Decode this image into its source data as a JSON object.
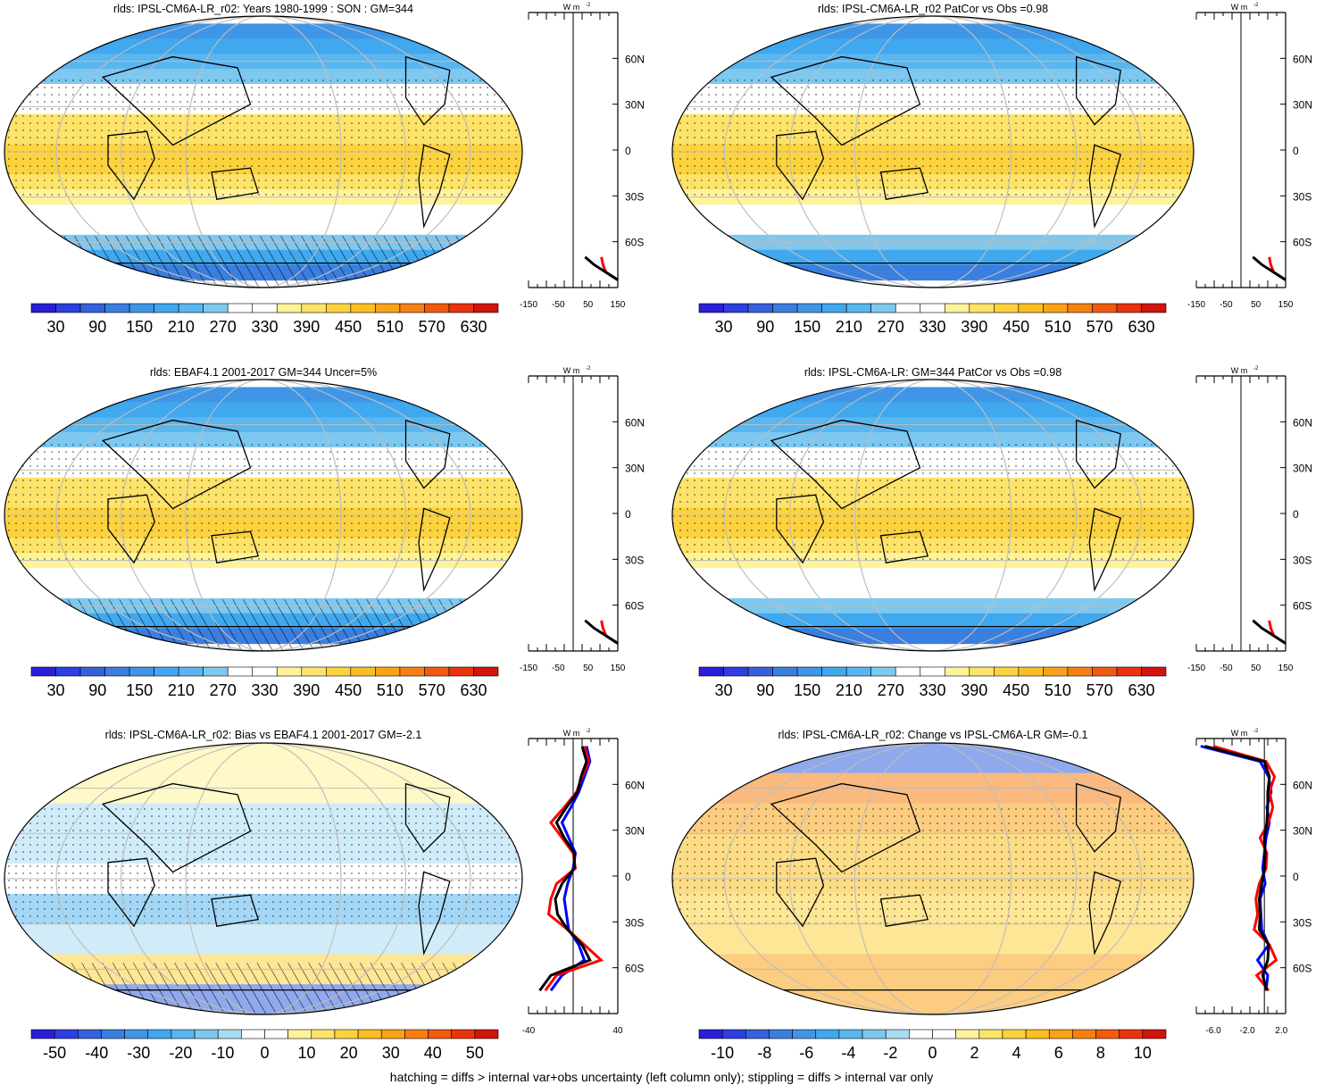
{
  "colors": {
    "abs_scale": [
      "#2a1ed8",
      "#2e3fe0",
      "#3561dc",
      "#3a7ee0",
      "#3f96e6",
      "#40a8ee",
      "#5ab6ef",
      "#7ec8f0",
      "#ffffff",
      "#ffffff",
      "#fff39a",
      "#fde36a",
      "#fcd23f",
      "#fbbf22",
      "#f9a21a",
      "#f68014",
      "#f15a10",
      "#ea330e",
      "#d1140c"
    ],
    "diff_scale": [
      "#2a1ed8",
      "#2e3fe0",
      "#3561dc",
      "#3a7ee0",
      "#3f96e6",
      "#40a8ee",
      "#5ab6ef",
      "#7ec8f0",
      "#a9dcf3",
      "#ffffff",
      "#ffffff",
      "#fff39a",
      "#fde36a",
      "#fcd23f",
      "#fbbf22",
      "#f9a21a",
      "#f68014",
      "#f15a10",
      "#ea330e",
      "#d1140c"
    ],
    "land": "#000000",
    "grid": "#bdbdbd"
  },
  "footnote": "hatching = diffs > internal var+obs uncertainty (left column only); stippling = diffs > internal var only",
  "panels": [
    {
      "id": "p1",
      "title": "rlds: IPSL-CM6A-LR_r02: Years 1980-1999 : SON : GM=344",
      "scale": "abs",
      "colorbar_labels": [
        "30",
        "90",
        "150",
        "210",
        "270",
        "330",
        "390",
        "450",
        "510",
        "570",
        "630"
      ]
    },
    {
      "id": "p2",
      "title": "rlds: IPSL-CM6A-LR_r02 PatCor vs Obs =0.98",
      "scale": "abs",
      "colorbar_labels": [
        "30",
        "90",
        "150",
        "210",
        "270",
        "330",
        "390",
        "450",
        "510",
        "570",
        "630"
      ]
    },
    {
      "id": "p3",
      "title": "rlds: EBAF4.1 2001-2017 GM=344 Uncer=5%",
      "scale": "abs",
      "colorbar_labels": [
        "30",
        "90",
        "150",
        "210",
        "270",
        "330",
        "390",
        "450",
        "510",
        "570",
        "630"
      ]
    },
    {
      "id": "p4",
      "title": "rlds: IPSL-CM6A-LR: GM=344 PatCor vs Obs =0.98",
      "scale": "abs",
      "colorbar_labels": [
        "30",
        "90",
        "150",
        "210",
        "270",
        "330",
        "390",
        "450",
        "510",
        "570",
        "630"
      ]
    },
    {
      "id": "p5",
      "title": "rlds: IPSL-CM6A-LR_r02: Bias vs EBAF4.1 2001-2017  GM=-2.1",
      "scale": "diff",
      "colorbar_labels": [
        "-50",
        "-40",
        "-30",
        "-20",
        "-10",
        "0",
        "10",
        "20",
        "30",
        "40",
        "50"
      ]
    },
    {
      "id": "p6",
      "title": "rlds: IPSL-CM6A-LR_r02: Change vs IPSL-CM6A-LR GM=-0.1",
      "scale": "diff",
      "colorbar_labels": [
        "-10",
        "-8",
        "-6",
        "-4",
        "-2",
        "0",
        "2",
        "4",
        "6",
        "8",
        "10"
      ]
    }
  ],
  "profiles": [
    {
      "id": "z1",
      "unit": "W m",
      "unit_exp": "-2",
      "lat_labels": [
        "60N",
        "30N",
        "0",
        "30S",
        "60S"
      ],
      "x_labels": [
        "-150",
        "-50",
        "50",
        "150"
      ],
      "xlim": [
        -150,
        150
      ],
      "vline": 0
    },
    {
      "id": "z2",
      "unit": "W m",
      "unit_exp": "-2",
      "lat_labels": [
        "60N",
        "30N",
        "0",
        "30S",
        "60S"
      ],
      "x_labels": [
        "-150",
        "-50",
        "50",
        "150"
      ],
      "xlim": [
        -150,
        150
      ],
      "vline": 0
    },
    {
      "id": "z3",
      "unit": "W m",
      "unit_exp": "-2",
      "lat_labels": [
        "60N",
        "30N",
        "0",
        "30S",
        "60S"
      ],
      "x_labels": [
        "-150",
        "-50",
        "50",
        "150"
      ],
      "xlim": [
        -150,
        150
      ],
      "vline": 0
    },
    {
      "id": "z4",
      "unit": "W m",
      "unit_exp": "-2",
      "lat_labels": [
        "60N",
        "30N",
        "0",
        "30S",
        "60S"
      ],
      "x_labels": [
        "-150",
        "-50",
        "50",
        "150"
      ],
      "xlim": [
        -150,
        150
      ],
      "vline": 0
    },
    {
      "id": "z5",
      "unit": "W m",
      "unit_exp": "-2",
      "lat_labels": [
        "60N",
        "30N",
        "0",
        "30S",
        "60S"
      ],
      "x_labels": [
        "-40",
        "40"
      ],
      "xlim": [
        -40,
        40
      ],
      "vline": 0
    },
    {
      "id": "z6",
      "unit": "W m",
      "unit_exp": "-2",
      "lat_labels": [
        "60N",
        "30N",
        "0",
        "30S",
        "60S"
      ],
      "x_labels": [
        "-6.0",
        "-2.0",
        "2.0"
      ],
      "xlim": [
        -8,
        2.5
      ],
      "vline": 0
    }
  ],
  "chart_data": [
    {
      "type": "heatmap",
      "title": "rlds: IPSL-CM6A-LR_r02: Years 1980-1999 : SON : GM=344",
      "zlim": [
        30,
        630
      ],
      "lat": [
        80,
        70,
        60,
        50,
        40,
        30,
        20,
        10,
        0,
        -10,
        -20,
        -30,
        -40,
        -50,
        -60,
        -70,
        -80
      ],
      "zonal_values": [
        160,
        200,
        250,
        280,
        300,
        340,
        380,
        400,
        410,
        410,
        390,
        350,
        330,
        300,
        270,
        200,
        140
      ]
    },
    {
      "type": "heatmap",
      "title": "rlds: IPSL-CM6A-LR_r02 PatCor vs Obs =0.98",
      "zlim": [
        30,
        630
      ],
      "lat": [
        80,
        70,
        60,
        50,
        40,
        30,
        20,
        10,
        0,
        -10,
        -20,
        -30,
        -40,
        -50,
        -60,
        -70,
        -80
      ],
      "zonal_values": [
        160,
        200,
        250,
        280,
        300,
        340,
        380,
        400,
        410,
        410,
        390,
        350,
        330,
        300,
        270,
        200,
        140
      ]
    },
    {
      "type": "heatmap",
      "title": "rlds: EBAF4.1 2001-2017 GM=344 Uncer=5%",
      "zlim": [
        30,
        630
      ],
      "lat": [
        80,
        70,
        60,
        50,
        40,
        30,
        20,
        10,
        0,
        -10,
        -20,
        -30,
        -40,
        -50,
        -60,
        -70,
        -80
      ],
      "zonal_values": [
        170,
        205,
        250,
        280,
        305,
        345,
        385,
        405,
        410,
        410,
        390,
        350,
        330,
        300,
        275,
        210,
        150
      ]
    },
    {
      "type": "heatmap",
      "title": "rlds: IPSL-CM6A-LR: GM=344 PatCor vs Obs =0.98",
      "zlim": [
        30,
        630
      ],
      "lat": [
        80,
        70,
        60,
        50,
        40,
        30,
        20,
        10,
        0,
        -10,
        -20,
        -30,
        -40,
        -50,
        -60,
        -70,
        -80
      ],
      "zonal_values": [
        160,
        200,
        250,
        280,
        300,
        340,
        380,
        400,
        410,
        410,
        390,
        350,
        330,
        300,
        270,
        200,
        140
      ]
    },
    {
      "type": "line",
      "title": "rlds: IPSL-CM6A-LR_r02: Bias vs EBAF4.1 2001-2017  GM=-2.1",
      "xlim": [
        -40,
        40
      ],
      "series": [
        {
          "lat": [
            85,
            75,
            65,
            55,
            45,
            35,
            25,
            15,
            5,
            -5,
            -15,
            -25,
            -35,
            -45,
            -55,
            -65,
            -75
          ],
          "values": [
            12,
            15,
            10,
            5,
            -2,
            -10,
            -4,
            2,
            0,
            -5,
            -8,
            -6,
            -4,
            5,
            10,
            -10,
            -20
          ]
        },
        {
          "lat": [
            85,
            75,
            65,
            55,
            45,
            35,
            25,
            15,
            5,
            -5,
            -15,
            -25,
            -35,
            -45,
            -55,
            -65,
            -75
          ],
          "values": [
            10,
            14,
            8,
            3,
            -8,
            -20,
            -10,
            0,
            2,
            -15,
            -20,
            -22,
            -5,
            10,
            25,
            -15,
            -25
          ]
        },
        {
          "lat": [
            85,
            75,
            65,
            55,
            45,
            35,
            25,
            15,
            5,
            -5,
            -15,
            -25,
            -35,
            -45,
            -55,
            -65,
            -75
          ],
          "values": [
            8,
            12,
            7,
            4,
            -6,
            -15,
            -8,
            1,
            1,
            -10,
            -16,
            -14,
            -5,
            8,
            15,
            -20,
            -30
          ]
        }
      ]
    },
    {
      "type": "line",
      "title": "rlds: IPSL-CM6A-LR_r02: Change vs IPSL-CM6A-LR GM=-0.1",
      "xlim": [
        -8,
        2.5
      ],
      "series": [
        {
          "lat": [
            85,
            75,
            65,
            55,
            45,
            35,
            25,
            15,
            5,
            -5,
            -15,
            -25,
            -35,
            -45,
            -55,
            -65,
            -75
          ],
          "values": [
            -7.5,
            -0.5,
            0.5,
            0.8,
            0.3,
            0.6,
            0.2,
            0,
            -0.2,
            0.1,
            -0.5,
            -0.4,
            -0.3,
            0.5,
            -0.8,
            0.4,
            0.2
          ]
        },
        {
          "lat": [
            85,
            75,
            65,
            55,
            45,
            35,
            25,
            15,
            5,
            -5,
            -15,
            -25,
            -35,
            -45,
            -55,
            -65,
            -75
          ],
          "values": [
            -6,
            0.2,
            1.2,
            0.6,
            1.0,
            0.5,
            -0.5,
            0.3,
            0.2,
            -0.6,
            -1.0,
            -0.8,
            -1.2,
            0.6,
            1.4,
            -0.9,
            0.5
          ]
        },
        {
          "lat": [
            85,
            75,
            65,
            55,
            45,
            35,
            25,
            15,
            5,
            -5,
            -15,
            -25,
            -35,
            -45,
            -55,
            -65,
            -75
          ],
          "values": [
            -7,
            0,
            0.6,
            0.4,
            0.4,
            0.3,
            0,
            0.1,
            0,
            -0.3,
            -0.6,
            -0.5,
            -0.6,
            0.5,
            0.4,
            -0.2,
            0.3
          ]
        }
      ]
    }
  ]
}
